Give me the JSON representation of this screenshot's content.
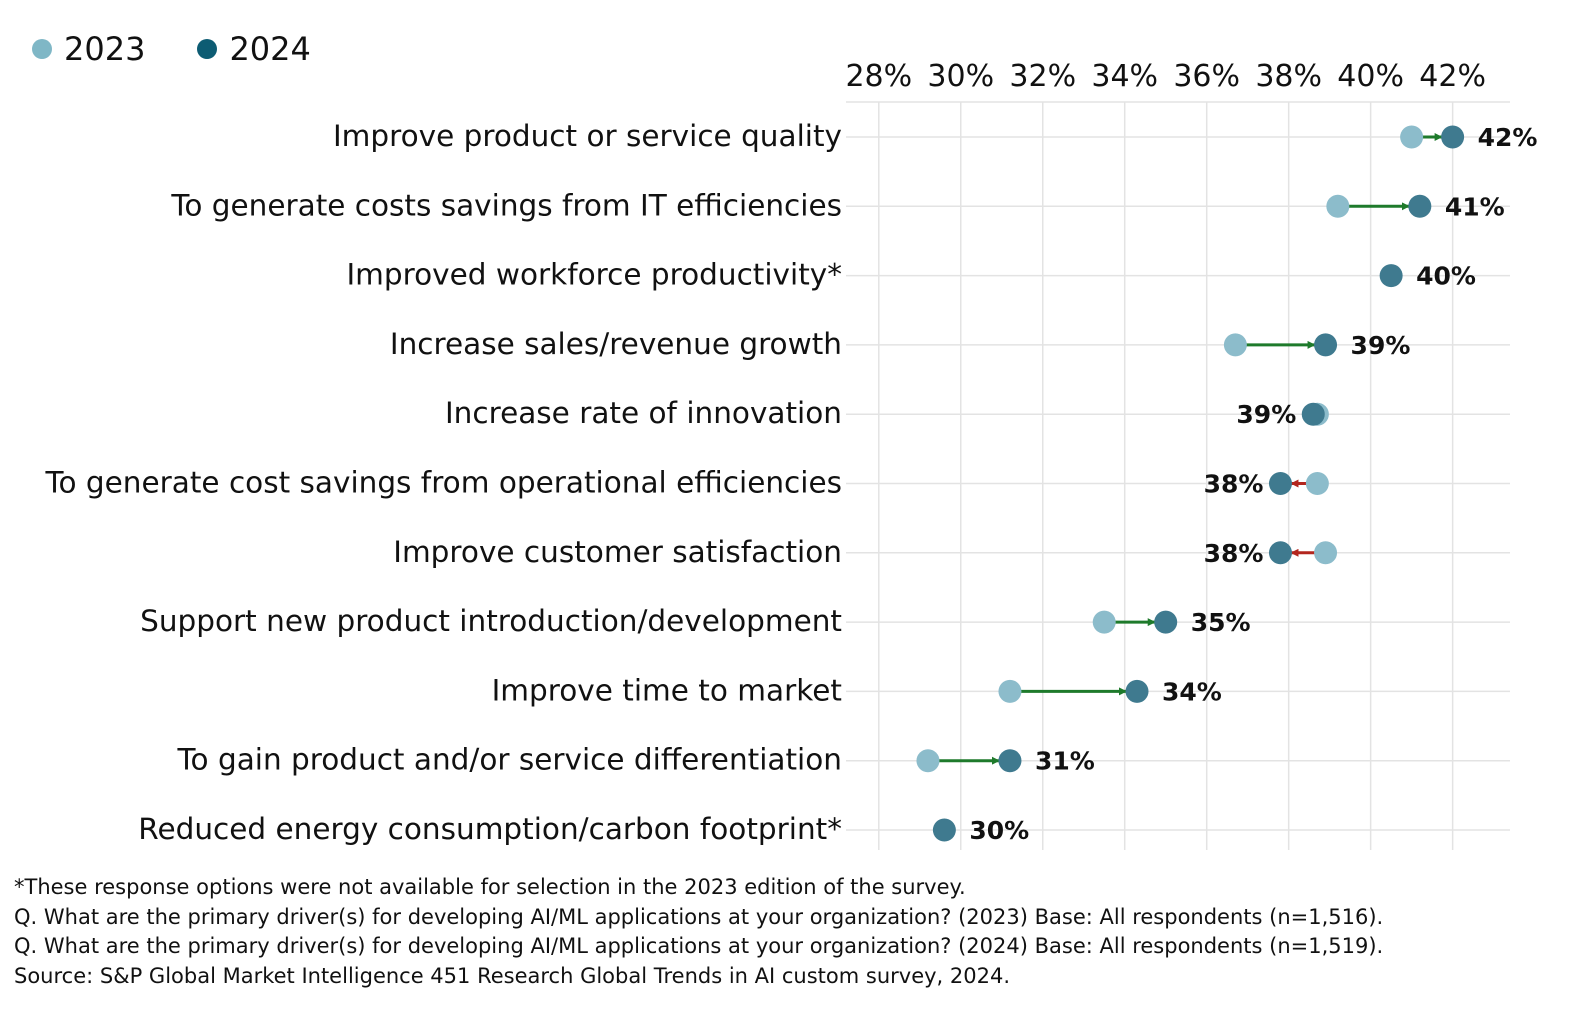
{
  "legend": [
    {
      "label": "2023",
      "color": "#7fb7c6"
    },
    {
      "label": "2024",
      "color": "#0d5c73"
    }
  ],
  "colors": {
    "dot_2023": "#8cbccb",
    "dot_2024": "#3f7a8f",
    "arrow_up": "#1e7a2b",
    "arrow_down": "#b3261e",
    "grid": "#e3e3e3"
  },
  "chart_data": {
    "type": "dumbbell",
    "title": "",
    "xlabel": "",
    "ylabel": "",
    "xlim": [
      27.2,
      43.4
    ],
    "x_ticks": [
      28,
      30,
      32,
      34,
      36,
      38,
      40,
      42
    ],
    "x_tick_labels": [
      "28%",
      "30%",
      "32%",
      "34%",
      "36%",
      "38%",
      "40%",
      "42%"
    ],
    "categories": [
      "Improve product or service quality",
      "To generate costs savings from IT efficiencies",
      "Improved workforce productivity*",
      "Increase sales/revenue growth",
      "Increase rate of innovation",
      "To generate cost savings from operational efficiencies",
      "Improve customer satisfaction",
      "Support new product introduction/development",
      "Improve time to market",
      "To gain product and/or service differentiation",
      "Reduced energy consumption/carbon footprint*"
    ],
    "series": [
      {
        "name": "2023",
        "values": [
          41.0,
          39.2,
          null,
          36.7,
          38.7,
          38.7,
          38.9,
          33.5,
          31.2,
          29.2,
          null
        ]
      },
      {
        "name": "2024",
        "values": [
          42.0,
          41.2,
          40.5,
          38.9,
          38.6,
          37.8,
          37.8,
          35.0,
          34.3,
          31.2,
          29.6
        ]
      }
    ],
    "data_labels": [
      "42%",
      "41%",
      "40%",
      "39%",
      "39%",
      "38%",
      "38%",
      "35%",
      "34%",
      "31%",
      "30%"
    ]
  },
  "notes": [
    "*These response options were not available for selection in the 2023 edition of the survey.",
    "Q. What are the primary driver(s) for developing AI/ML applications at your organization? (2023) Base: All respondents (n=1,516).",
    "Q. What are the primary driver(s) for developing AI/ML applications at your organization? (2024) Base: All respondents (n=1,519).",
    "Source: S&P Global Market Intelligence 451 Research Global Trends in AI custom survey, 2024."
  ]
}
